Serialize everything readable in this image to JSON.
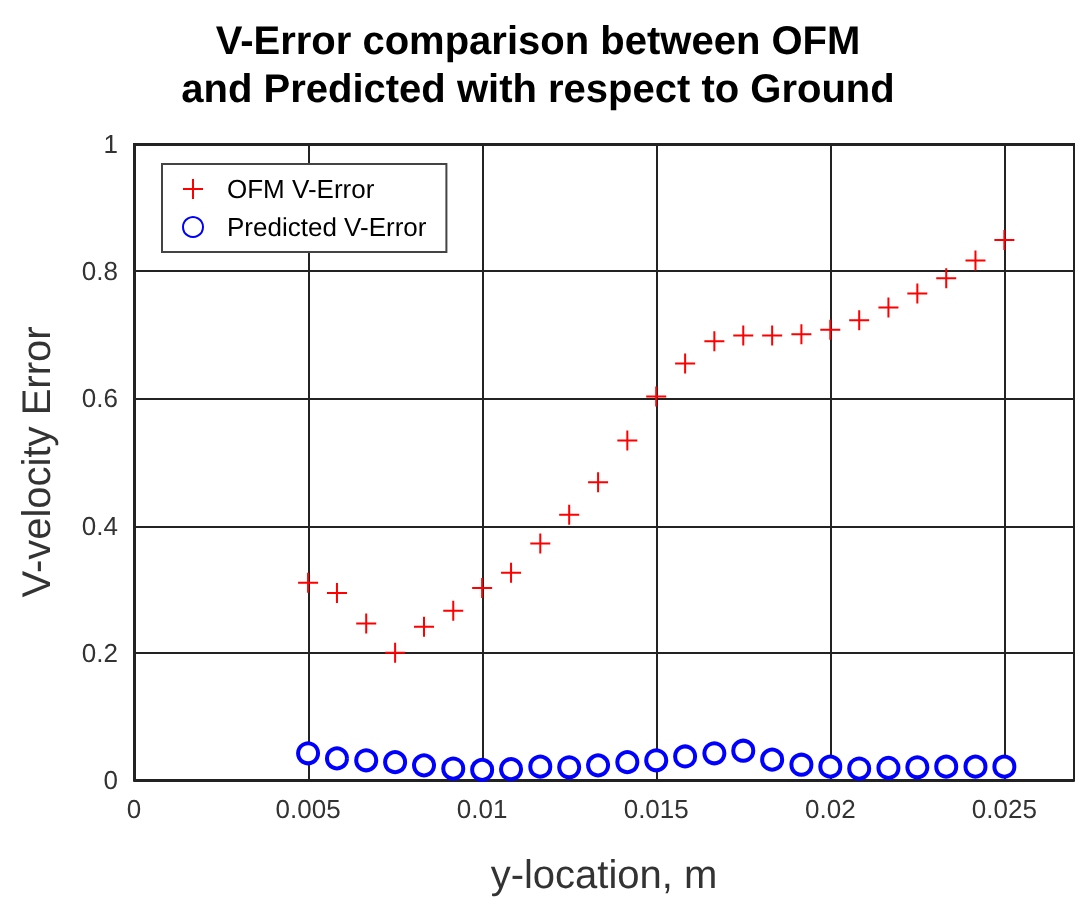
{
  "chart_data": {
    "type": "scatter",
    "title": "V-Error comparison between OFM\nand Predicted with respect to Ground",
    "xlabel": "y-location, m",
    "ylabel": "V-velocity Error",
    "x": [
      0.005,
      0.00583,
      0.00667,
      0.0075,
      0.00833,
      0.00917,
      0.01,
      0.01083,
      0.01167,
      0.0125,
      0.01333,
      0.01417,
      0.015,
      0.01583,
      0.01667,
      0.0175,
      0.01833,
      0.01917,
      0.02,
      0.02083,
      0.02167,
      0.0225,
      0.02333,
      0.02417,
      0.025
    ],
    "series": [
      {
        "name": "OFM V-Error",
        "color": "#ff0000",
        "marker": "cross",
        "values": [
          0.31,
          0.294,
          0.246,
          0.2,
          0.241,
          0.266,
          0.302,
          0.326,
          0.372,
          0.417,
          0.468,
          0.534,
          0.603,
          0.655,
          0.69,
          0.699,
          0.699,
          0.701,
          0.708,
          0.723,
          0.743,
          0.765,
          0.789,
          0.817,
          0.849
        ]
      },
      {
        "name": "Predicted V-Error",
        "color": "#0000ff",
        "marker": "circle",
        "values": [
          0.042,
          0.034,
          0.031,
          0.028,
          0.023,
          0.018,
          0.016,
          0.017,
          0.021,
          0.02,
          0.023,
          0.028,
          0.031,
          0.037,
          0.042,
          0.046,
          0.032,
          0.024,
          0.021,
          0.018,
          0.019,
          0.02,
          0.021,
          0.021,
          0.021
        ]
      }
    ],
    "xlim": [
      0,
      0.027
    ],
    "xticks": [
      0,
      0.005,
      0.01,
      0.015,
      0.02,
      0.025
    ],
    "ylim": [
      0,
      1
    ],
    "yticks": [
      0,
      0.2,
      0.4,
      0.6,
      0.8,
      1
    ],
    "grid": true,
    "legend": "top left"
  }
}
